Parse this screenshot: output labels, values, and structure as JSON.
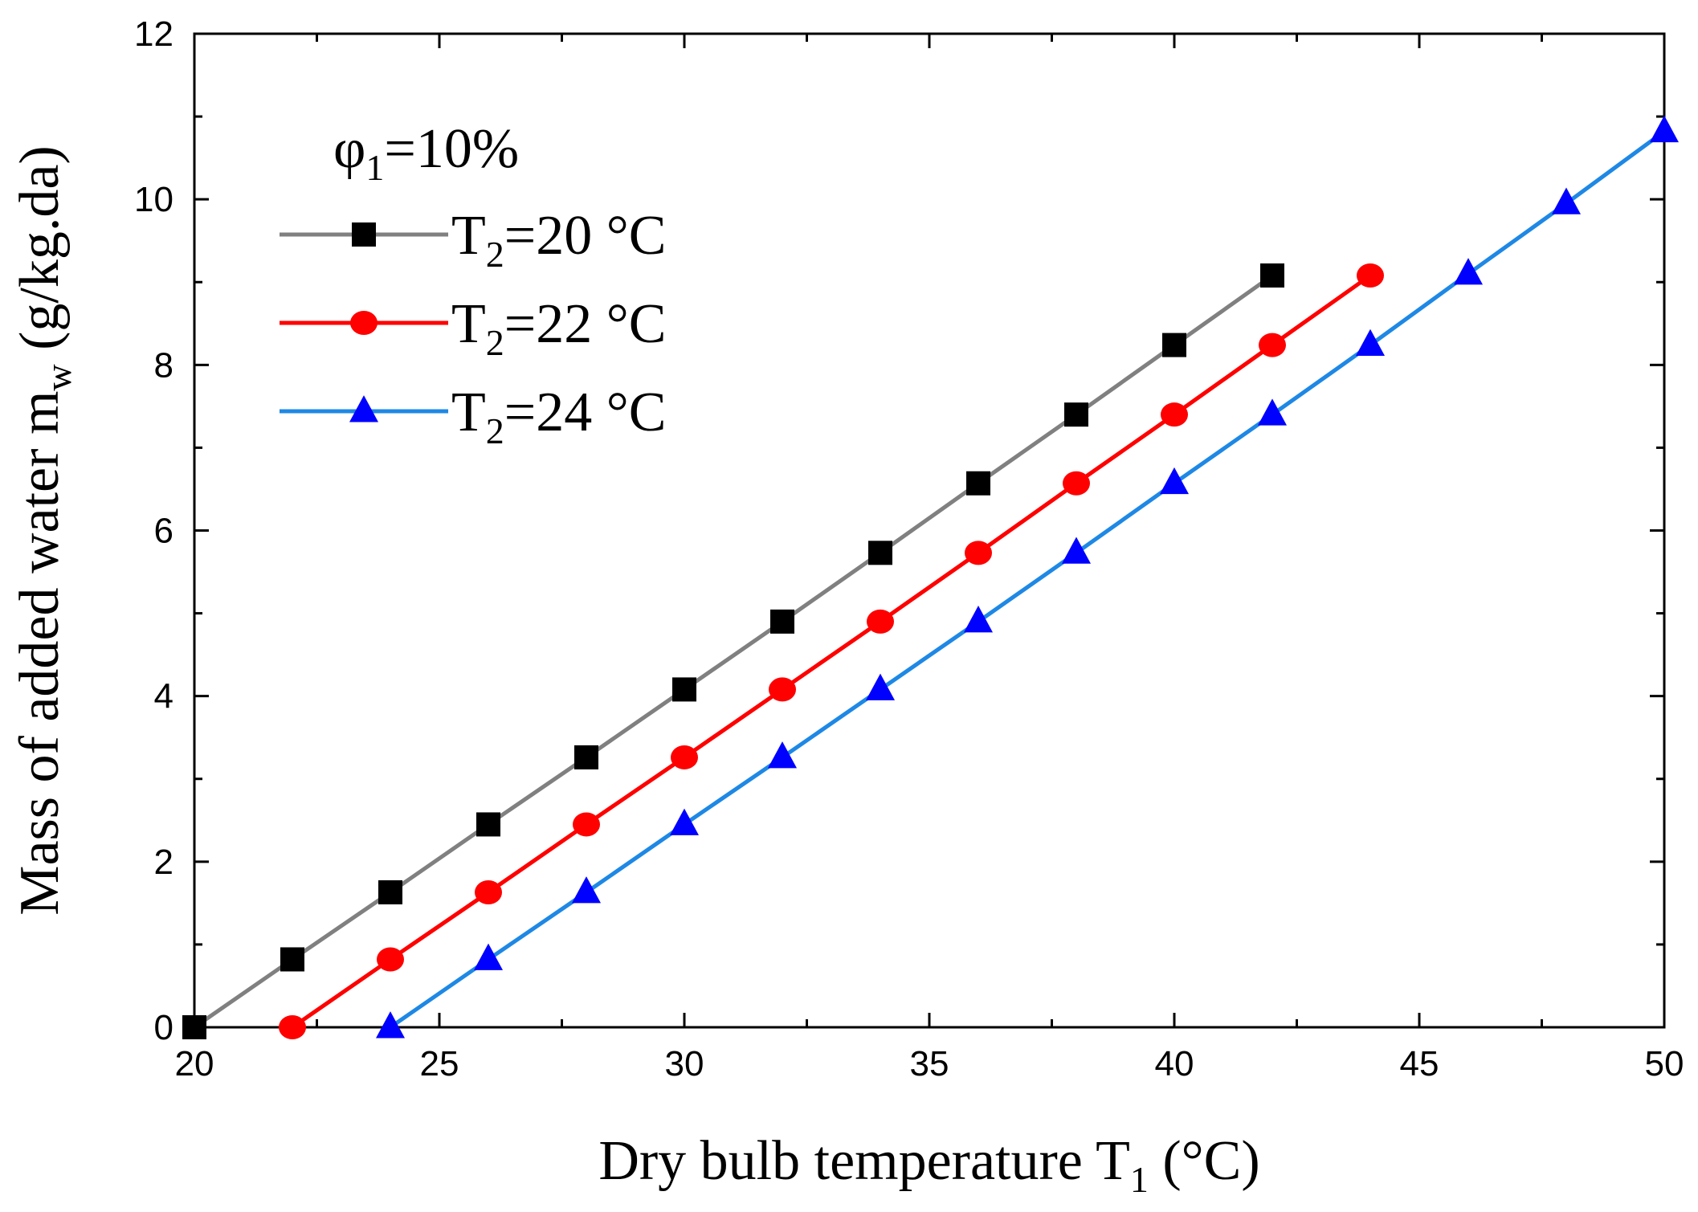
{
  "chart_data": {
    "type": "line",
    "xlabel": {
      "main": "Dry bulb temperature T",
      "sub": "1",
      "unit": " (°C)"
    },
    "ylabel": {
      "main": "Mass of added water m",
      "sub": "w",
      "unit": " (g/kg.da)"
    },
    "xlim": [
      20,
      50
    ],
    "ylim": [
      0,
      12
    ],
    "xticks": [
      20,
      25,
      30,
      35,
      40,
      45,
      50
    ],
    "yticks": [
      0,
      2,
      4,
      6,
      8,
      10,
      12
    ],
    "grid": false,
    "legend_placement": "top-left",
    "legend_title": {
      "symbol": "φ",
      "sub": "1",
      "text": "=10%"
    },
    "series": [
      {
        "name": "T2=20 °C",
        "label": {
          "main": "T",
          "sub": "2",
          "text": "=20 °C"
        },
        "marker": "square",
        "line_color": "#808080",
        "marker_color": "#000000",
        "points": [
          [
            20,
            0
          ],
          [
            22,
            0.82
          ],
          [
            24,
            1.63
          ],
          [
            26,
            2.45
          ],
          [
            28,
            3.26
          ],
          [
            30,
            4.08
          ],
          [
            32,
            4.9
          ],
          [
            34,
            5.73
          ],
          [
            36,
            6.57
          ],
          [
            38,
            7.4
          ],
          [
            40,
            8.24
          ],
          [
            42,
            9.08
          ]
        ]
      },
      {
        "name": "T2=22 °C",
        "label": {
          "main": "T",
          "sub": "2",
          "text": "=22 °C"
        },
        "marker": "circle",
        "line_color": "#ff0000",
        "marker_color": "#ff0000",
        "points": [
          [
            22,
            0
          ],
          [
            24,
            0.82
          ],
          [
            26,
            1.63
          ],
          [
            28,
            2.45
          ],
          [
            30,
            3.26
          ],
          [
            32,
            4.08
          ],
          [
            34,
            4.9
          ],
          [
            36,
            5.73
          ],
          [
            38,
            6.57
          ],
          [
            40,
            7.4
          ],
          [
            42,
            8.24
          ],
          [
            44,
            9.08
          ]
        ]
      },
      {
        "name": "T2=24 °C",
        "label": {
          "main": "T",
          "sub": "2",
          "text": "=24 °C"
        },
        "marker": "triangle",
        "line_color": "#1e88e5",
        "marker_color": "#0000ff",
        "points": [
          [
            24,
            0
          ],
          [
            26,
            0.82
          ],
          [
            28,
            1.63
          ],
          [
            30,
            2.45
          ],
          [
            32,
            3.26
          ],
          [
            34,
            4.08
          ],
          [
            36,
            4.9
          ],
          [
            38,
            5.73
          ],
          [
            40,
            6.57
          ],
          [
            42,
            7.4
          ],
          [
            44,
            8.24
          ],
          [
            46,
            9.1
          ],
          [
            48,
            9.95
          ],
          [
            50,
            10.82
          ]
        ]
      }
    ]
  }
}
